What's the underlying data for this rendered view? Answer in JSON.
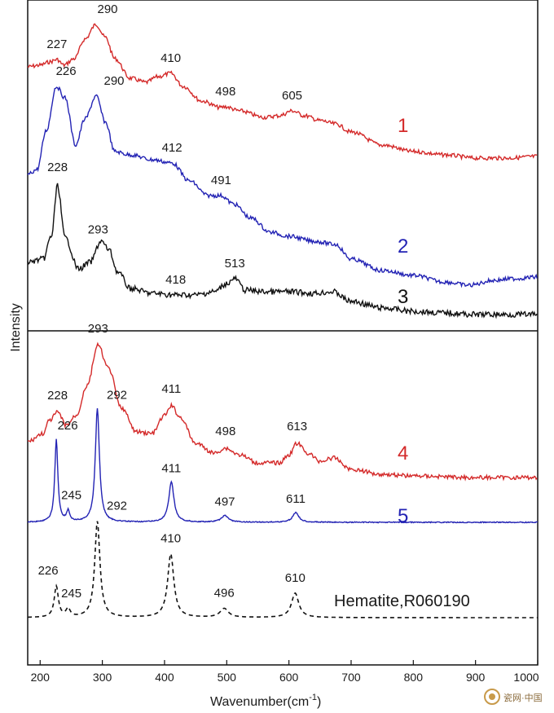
{
  "chart_data": {
    "type": "line",
    "xlabel": "Wavenumber(cm",
    "xlabel_sup": "-1",
    "xlabel_close": ")",
    "ylabel": "Intensity",
    "xlim": [
      180,
      1000
    ],
    "xticks": [
      "200",
      "300",
      "400",
      "500",
      "600",
      "700",
      "800",
      "900",
      "1000"
    ],
    "colors": {
      "red": "#d42a2a",
      "blue": "#2323b4",
      "black": "#111111"
    },
    "series": [
      {
        "name": "1",
        "color": "red",
        "anchors": [
          [
            180,
            82
          ],
          [
            200,
            80
          ],
          [
            215,
            76
          ],
          [
            227,
            73
          ],
          [
            238,
            80
          ],
          [
            255,
            72
          ],
          [
            272,
            48
          ],
          [
            290,
            30
          ],
          [
            305,
            46
          ],
          [
            320,
            72
          ],
          [
            345,
            96
          ],
          [
            370,
            101
          ],
          [
            390,
            94
          ],
          [
            410,
            90
          ],
          [
            430,
            106
          ],
          [
            460,
            124
          ],
          [
            490,
            132
          ],
          [
            498,
            131
          ],
          [
            520,
            136
          ],
          [
            560,
            144
          ],
          [
            585,
            142
          ],
          [
            605,
            136
          ],
          [
            625,
            142
          ],
          [
            650,
            148
          ],
          [
            675,
            152
          ],
          [
            700,
            162
          ],
          [
            750,
            178
          ],
          [
            800,
            186
          ],
          [
            850,
            190
          ],
          [
            900,
            194
          ],
          [
            950,
            194
          ],
          [
            1000,
            192
          ]
        ],
        "peaks": [
          {
            "label": "227",
            "x": 227
          },
          {
            "label": "290",
            "x": 290
          },
          {
            "label": "410",
            "x": 410
          },
          {
            "label": "498",
            "x": 498
          },
          {
            "label": "605",
            "x": 605
          }
        ]
      },
      {
        "name": "2",
        "color": "blue",
        "anchors": [
          [
            180,
            214
          ],
          [
            195,
            208
          ],
          [
            210,
            160
          ],
          [
            226,
            106
          ],
          [
            240,
            120
          ],
          [
            257,
            178
          ],
          [
            272,
            146
          ],
          [
            290,
            118
          ],
          [
            305,
            150
          ],
          [
            320,
            186
          ],
          [
            345,
            190
          ],
          [
            380,
            196
          ],
          [
            412,
            200
          ],
          [
            440,
            222
          ],
          [
            470,
            240
          ],
          [
            491,
            240
          ],
          [
            510,
            250
          ],
          [
            540,
            268
          ],
          [
            570,
            285
          ],
          [
            600,
            290
          ],
          [
            640,
            296
          ],
          [
            675,
            300
          ],
          [
            700,
            318
          ],
          [
            750,
            332
          ],
          [
            800,
            338
          ],
          [
            850,
            346
          ],
          [
            890,
            350
          ],
          [
            930,
            344
          ],
          [
            960,
            342
          ],
          [
            1000,
            340
          ]
        ],
        "peaks": [
          {
            "label": "226",
            "x": 226
          },
          {
            "label": "290",
            "x": 290
          },
          {
            "label": "412",
            "x": 412
          },
          {
            "label": "491",
            "x": 491
          }
        ]
      },
      {
        "name": "3",
        "color": "black",
        "anchors": [
          [
            180,
            322
          ],
          [
            205,
            318
          ],
          [
            218,
            290
          ],
          [
            228,
            228
          ],
          [
            240,
            292
          ],
          [
            262,
            330
          ],
          [
            280,
            322
          ],
          [
            298,
            296
          ],
          [
            310,
            306
          ],
          [
            325,
            334
          ],
          [
            345,
            354
          ],
          [
            380,
            360
          ],
          [
            418,
            362
          ],
          [
            450,
            362
          ],
          [
            480,
            358
          ],
          [
            500,
            348
          ],
          [
            513,
            342
          ],
          [
            530,
            356
          ],
          [
            560,
            358
          ],
          [
            600,
            358
          ],
          [
            640,
            360
          ],
          [
            670,
            358
          ],
          [
            700,
            370
          ],
          [
            750,
            378
          ],
          [
            800,
            382
          ],
          [
            850,
            384
          ],
          [
            900,
            386
          ],
          [
            950,
            386
          ],
          [
            1000,
            386
          ]
        ],
        "peaks": [
          {
            "label": "228",
            "x": 228
          },
          {
            "label": "293",
            "x": 293
          },
          {
            "label": "418",
            "x": 418
          },
          {
            "label": "513",
            "x": 513
          }
        ]
      },
      {
        "name": "4",
        "color": "red",
        "anchors": [
          [
            180,
            542
          ],
          [
            205,
            532
          ],
          [
            215,
            516
          ],
          [
            228,
            506
          ],
          [
            242,
            522
          ],
          [
            258,
            510
          ],
          [
            275,
            474
          ],
          [
            293,
            424
          ],
          [
            310,
            452
          ],
          [
            330,
            500
          ],
          [
            355,
            530
          ],
          [
            380,
            532
          ],
          [
            400,
            510
          ],
          [
            411,
            498
          ],
          [
            425,
            512
          ],
          [
            450,
            544
          ],
          [
            480,
            556
          ],
          [
            498,
            550
          ],
          [
            520,
            558
          ],
          [
            550,
            568
          ],
          [
            585,
            568
          ],
          [
            600,
            558
          ],
          [
            613,
            544
          ],
          [
            630,
            556
          ],
          [
            650,
            566
          ],
          [
            672,
            562
          ],
          [
            700,
            576
          ],
          [
            750,
            582
          ],
          [
            800,
            584
          ],
          [
            900,
            586
          ],
          [
            1000,
            586
          ]
        ],
        "peaks": [
          {
            "label": "228",
            "x": 228
          },
          {
            "label": "293",
            "x": 293
          },
          {
            "label": "411",
            "x": 411
          },
          {
            "label": "498",
            "x": 498
          },
          {
            "label": "613",
            "x": 613
          }
        ]
      },
      {
        "name": "5",
        "color": "blue",
        "base": 641,
        "peaks": [
          {
            "label": "226",
            "x": 226,
            "h": 101,
            "w": 3
          },
          {
            "label": "245",
            "x": 245,
            "h": 13,
            "w": 3
          },
          {
            "label": "292",
            "x": 292,
            "h": 139,
            "w": 4
          },
          {
            "label": "411",
            "x": 411,
            "h": 49,
            "w": 5
          },
          {
            "label": "497",
            "x": 497,
            "h": 8,
            "w": 7
          },
          {
            "label": "611",
            "x": 611,
            "h": 12,
            "w": 6
          }
        ]
      },
      {
        "name": "Hematite,R060190",
        "color": "black",
        "dashed": true,
        "base": 758,
        "peaks": [
          {
            "label": "226",
            "x": 226,
            "h": 38,
            "w": 4
          },
          {
            "label": "245",
            "x": 245,
            "h": 10,
            "w": 4
          },
          {
            "label": "292",
            "x": 292,
            "h": 118,
            "w": 5
          },
          {
            "label": "410",
            "x": 410,
            "h": 78,
            "w": 6
          },
          {
            "label": "496",
            "x": 496,
            "h": 11,
            "w": 8
          },
          {
            "label": "610",
            "x": 610,
            "h": 30,
            "w": 7
          }
        ]
      }
    ]
  },
  "watermark": "瓷网·中国"
}
